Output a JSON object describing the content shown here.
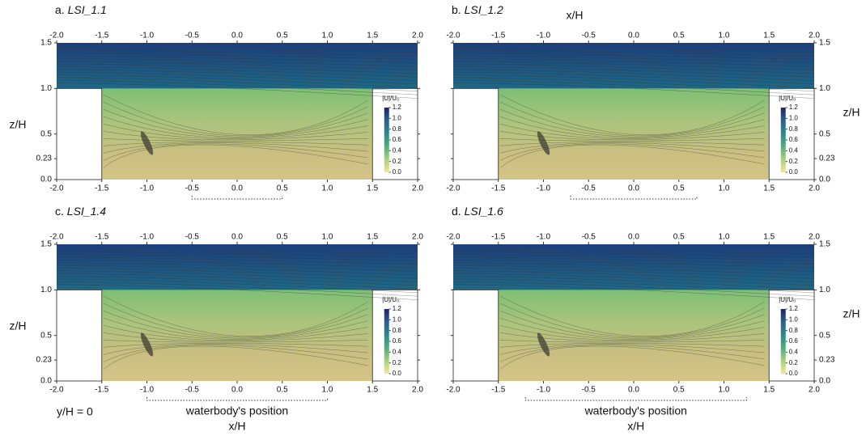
{
  "figure": {
    "top_x_label": "x/H",
    "section": "y/H = 0"
  },
  "chart_data": [
    {
      "type": "contour",
      "panel_label": "a.",
      "case": "LSI_1.1",
      "y_label": "z/H",
      "yaxis_side": "left",
      "xlim": [
        -2,
        2
      ],
      "xticks": [
        {
          "value": -2,
          "label": "-2.0"
        },
        -1.5,
        {
          "value": -1,
          "label": "-1.0"
        },
        -0.5,
        {
          "value": 0,
          "label": "0.0"
        },
        0.5,
        {
          "value": 1,
          "label": "1.0"
        },
        1.5,
        {
          "value": 2,
          "label": "2.0"
        }
      ],
      "ylim": [
        0,
        1.5
      ],
      "yticks": [
        {
          "value": 0,
          "label": "0.0"
        },
        0.23,
        0.5,
        {
          "value": 1,
          "label": "1.0"
        },
        1.5
      ],
      "colorbar": {
        "label": "|U|/U₀",
        "lim": [
          0,
          1.2
        ],
        "ticks": [
          {
            "value": 0,
            "label": "0.0"
          },
          0.2,
          0.4,
          0.6,
          0.8,
          {
            "value": 1,
            "label": "1.0"
          },
          1.2
        ]
      },
      "colormap": [
        "#f2e79a",
        "#a9d07a",
        "#4fae7c",
        "#2a8a8c",
        "#2a5f92",
        "#1c2470"
      ],
      "waterbody": [
        -0.5,
        0.5
      ]
    },
    {
      "type": "contour",
      "panel_label": "b.",
      "case": "LSI_1.2",
      "y_label": "z/H",
      "yaxis_side": "right",
      "xlim": [
        -2,
        2
      ],
      "xticks": [
        {
          "value": -2,
          "label": "-2.0"
        },
        -1.5,
        {
          "value": -1,
          "label": "-1.0"
        },
        -0.5,
        {
          "value": 0,
          "label": "0.0"
        },
        0.5,
        {
          "value": 1,
          "label": "1.0"
        },
        1.5,
        {
          "value": 2,
          "label": "2.0"
        }
      ],
      "ylim": [
        0,
        1.5
      ],
      "yticks": [
        {
          "value": 0,
          "label": "0.0"
        },
        0.23,
        0.5,
        {
          "value": 1,
          "label": "1.0"
        },
        1.5
      ],
      "colorbar": {
        "label": "|U|/U₀",
        "lim": [
          0,
          1.2
        ],
        "ticks": [
          {
            "value": 0,
            "label": "0.0"
          },
          0.2,
          0.4,
          0.6,
          0.8,
          {
            "value": 1,
            "label": "1.0"
          },
          1.2
        ]
      },
      "colormap": [
        "#f2e79a",
        "#a9d07a",
        "#4fae7c",
        "#2a8a8c",
        "#2a5f92",
        "#1c2470"
      ],
      "waterbody": [
        -0.7,
        0.7
      ]
    },
    {
      "type": "contour",
      "panel_label": "c.",
      "case": "LSI_1.4",
      "y_label": "z/H",
      "yaxis_side": "left",
      "xlim": [
        -2,
        2
      ],
      "xticks": [
        {
          "value": -2,
          "label": "-2.0"
        },
        -1.5,
        {
          "value": -1,
          "label": "-1.0"
        },
        -0.5,
        {
          "value": 0,
          "label": "0.0"
        },
        0.5,
        {
          "value": 1,
          "label": "1.0"
        },
        1.5,
        {
          "value": 2,
          "label": "2.0"
        }
      ],
      "ylim": [
        0,
        1.5
      ],
      "yticks": [
        {
          "value": 0,
          "label": "0.0"
        },
        0.23,
        0.5,
        {
          "value": 1,
          "label": "1.0"
        },
        1.5
      ],
      "colorbar": {
        "label": "|U|/U₀",
        "lim": [
          0,
          1.2
        ],
        "ticks": [
          {
            "value": 0,
            "label": "0.0"
          },
          0.2,
          0.4,
          0.6,
          0.8,
          {
            "value": 1,
            "label": "1.0"
          },
          1.2
        ]
      },
      "colormap": [
        "#f2e79a",
        "#a9d07a",
        "#4fae7c",
        "#2a8a8c",
        "#2a5f92",
        "#1c2470"
      ],
      "waterbody": [
        -1.0,
        1.0
      ],
      "waterbody_label": "waterbody's position",
      "x_label": "x/H"
    },
    {
      "type": "contour",
      "panel_label": "d.",
      "case": "LSI_1.6",
      "y_label": "z/H",
      "yaxis_side": "right",
      "xlim": [
        -2,
        2
      ],
      "xticks": [
        {
          "value": -2,
          "label": "-2.0"
        },
        -1.5,
        {
          "value": -1,
          "label": "-1.0"
        },
        -0.5,
        {
          "value": 0,
          "label": "0.0"
        },
        0.5,
        {
          "value": 1,
          "label": "1.0"
        },
        1.5,
        {
          "value": 2,
          "label": "2.0"
        }
      ],
      "ylim": [
        0,
        1.5
      ],
      "yticks": [
        {
          "value": 0,
          "label": "0.0"
        },
        0.23,
        0.5,
        {
          "value": 1,
          "label": "1.0"
        },
        1.5
      ],
      "colorbar": {
        "label": "|U|/U₀",
        "lim": [
          0,
          1.2
        ],
        "ticks": [
          {
            "value": 0,
            "label": "0.0"
          },
          0.2,
          0.4,
          0.6,
          0.8,
          {
            "value": 1,
            "label": "1.0"
          },
          1.2
        ]
      },
      "colormap": [
        "#f2e79a",
        "#a9d07a",
        "#4fae7c",
        "#2a8a8c",
        "#2a5f92",
        "#1c2470"
      ],
      "waterbody": [
        -1.2,
        1.25
      ],
      "waterbody_label": "waterbody's position",
      "x_label": "x/H"
    }
  ]
}
